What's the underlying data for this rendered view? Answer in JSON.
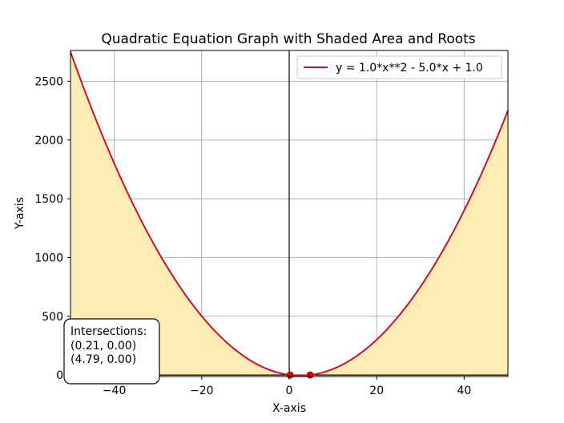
{
  "chart_data": {
    "type": "line",
    "title": "Quadratic Equation Graph with Shaded Area and Roots",
    "xlabel": "X-axis",
    "ylabel": "Y-axis",
    "xlim": [
      -50,
      50
    ],
    "ylim": [
      -13,
      2762
    ],
    "x_ticks": [
      -40,
      -20,
      0,
      20,
      40
    ],
    "x_tick_labels": [
      "−40",
      "−20",
      "0",
      "20",
      "40"
    ],
    "y_ticks": [
      0,
      500,
      1000,
      1500,
      2000,
      2500
    ],
    "y_tick_labels": [
      "0",
      "500",
      "1000",
      "1500",
      "2000",
      "2500"
    ],
    "grid": true,
    "legend_position": "top-right",
    "series": [
      {
        "name": "y = 1.0*x**2 - 5.0*x + 1.0",
        "color": "#c8102e",
        "coefficients": {
          "a": 1.0,
          "b": -5.0,
          "c": 1.0
        },
        "x_range": [
          -50,
          50
        ]
      }
    ],
    "shaded_area": {
      "color": "#ffecb3",
      "between": "curve and y = 0"
    },
    "roots": [
      {
        "x": 0.21,
        "y": 0.0
      },
      {
        "x": 4.79,
        "y": 0.0
      }
    ],
    "root_color": "#cc0000",
    "annotation": {
      "title": "Intersections:",
      "lines": [
        "(0.21, 0.00)",
        "(4.79, 0.00)"
      ]
    }
  }
}
